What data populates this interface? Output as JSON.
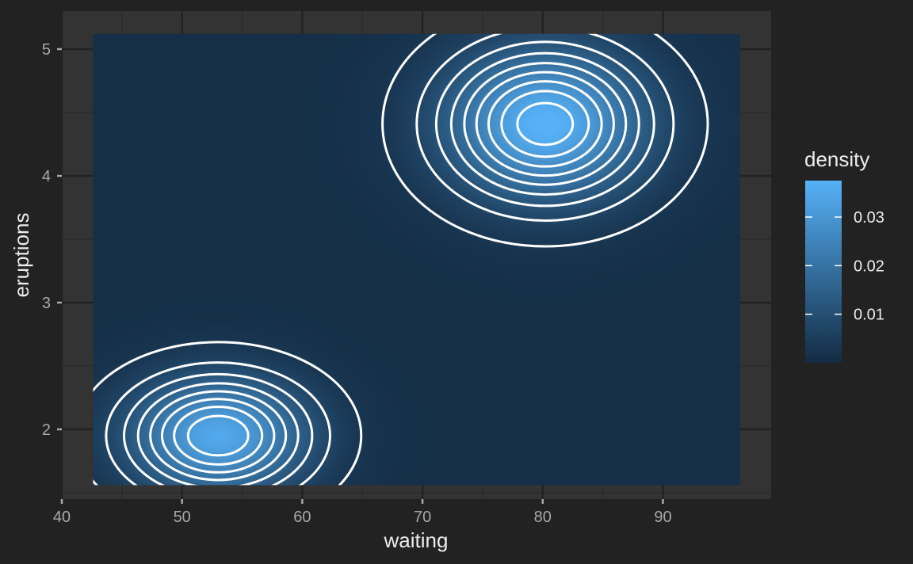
{
  "chart_data": {
    "type": "heatmap",
    "subtype": "2d-density-raster-with-contours",
    "title": "",
    "xlabel": "waiting",
    "ylabel": "eruptions",
    "xlim": [
      40,
      99
    ],
    "ylim": [
      1.45,
      5.3
    ],
    "x_ticks": [
      "40",
      "50",
      "60",
      "70",
      "80",
      "90"
    ],
    "y_ticks": [
      "2",
      "3",
      "4",
      "5"
    ],
    "raster_extent": {
      "x": [
        42.6,
        96.4
      ],
      "y": [
        1.56,
        5.12
      ]
    },
    "density_peaks": [
      {
        "waiting": 80.2,
        "eruptions": 4.41,
        "density": 0.037
      },
      {
        "waiting": 53.0,
        "eruptions": 1.95,
        "density": 0.034
      }
    ],
    "contour_color": "#ffffff",
    "grid": true,
    "legend": {
      "title": "density",
      "position": "right",
      "labels": [
        "0.03",
        "0.02",
        "0.01"
      ],
      "breaks": [
        0.03,
        0.02,
        0.01
      ],
      "range": [
        0.0,
        0.0375
      ],
      "colors": {
        "low": "#132b43",
        "high": "#56b1f7"
      }
    }
  },
  "theme": {
    "background": "#222222",
    "panel": "#333333",
    "grid_major": "#222222",
    "grid_minor": "#2a2a2a"
  }
}
